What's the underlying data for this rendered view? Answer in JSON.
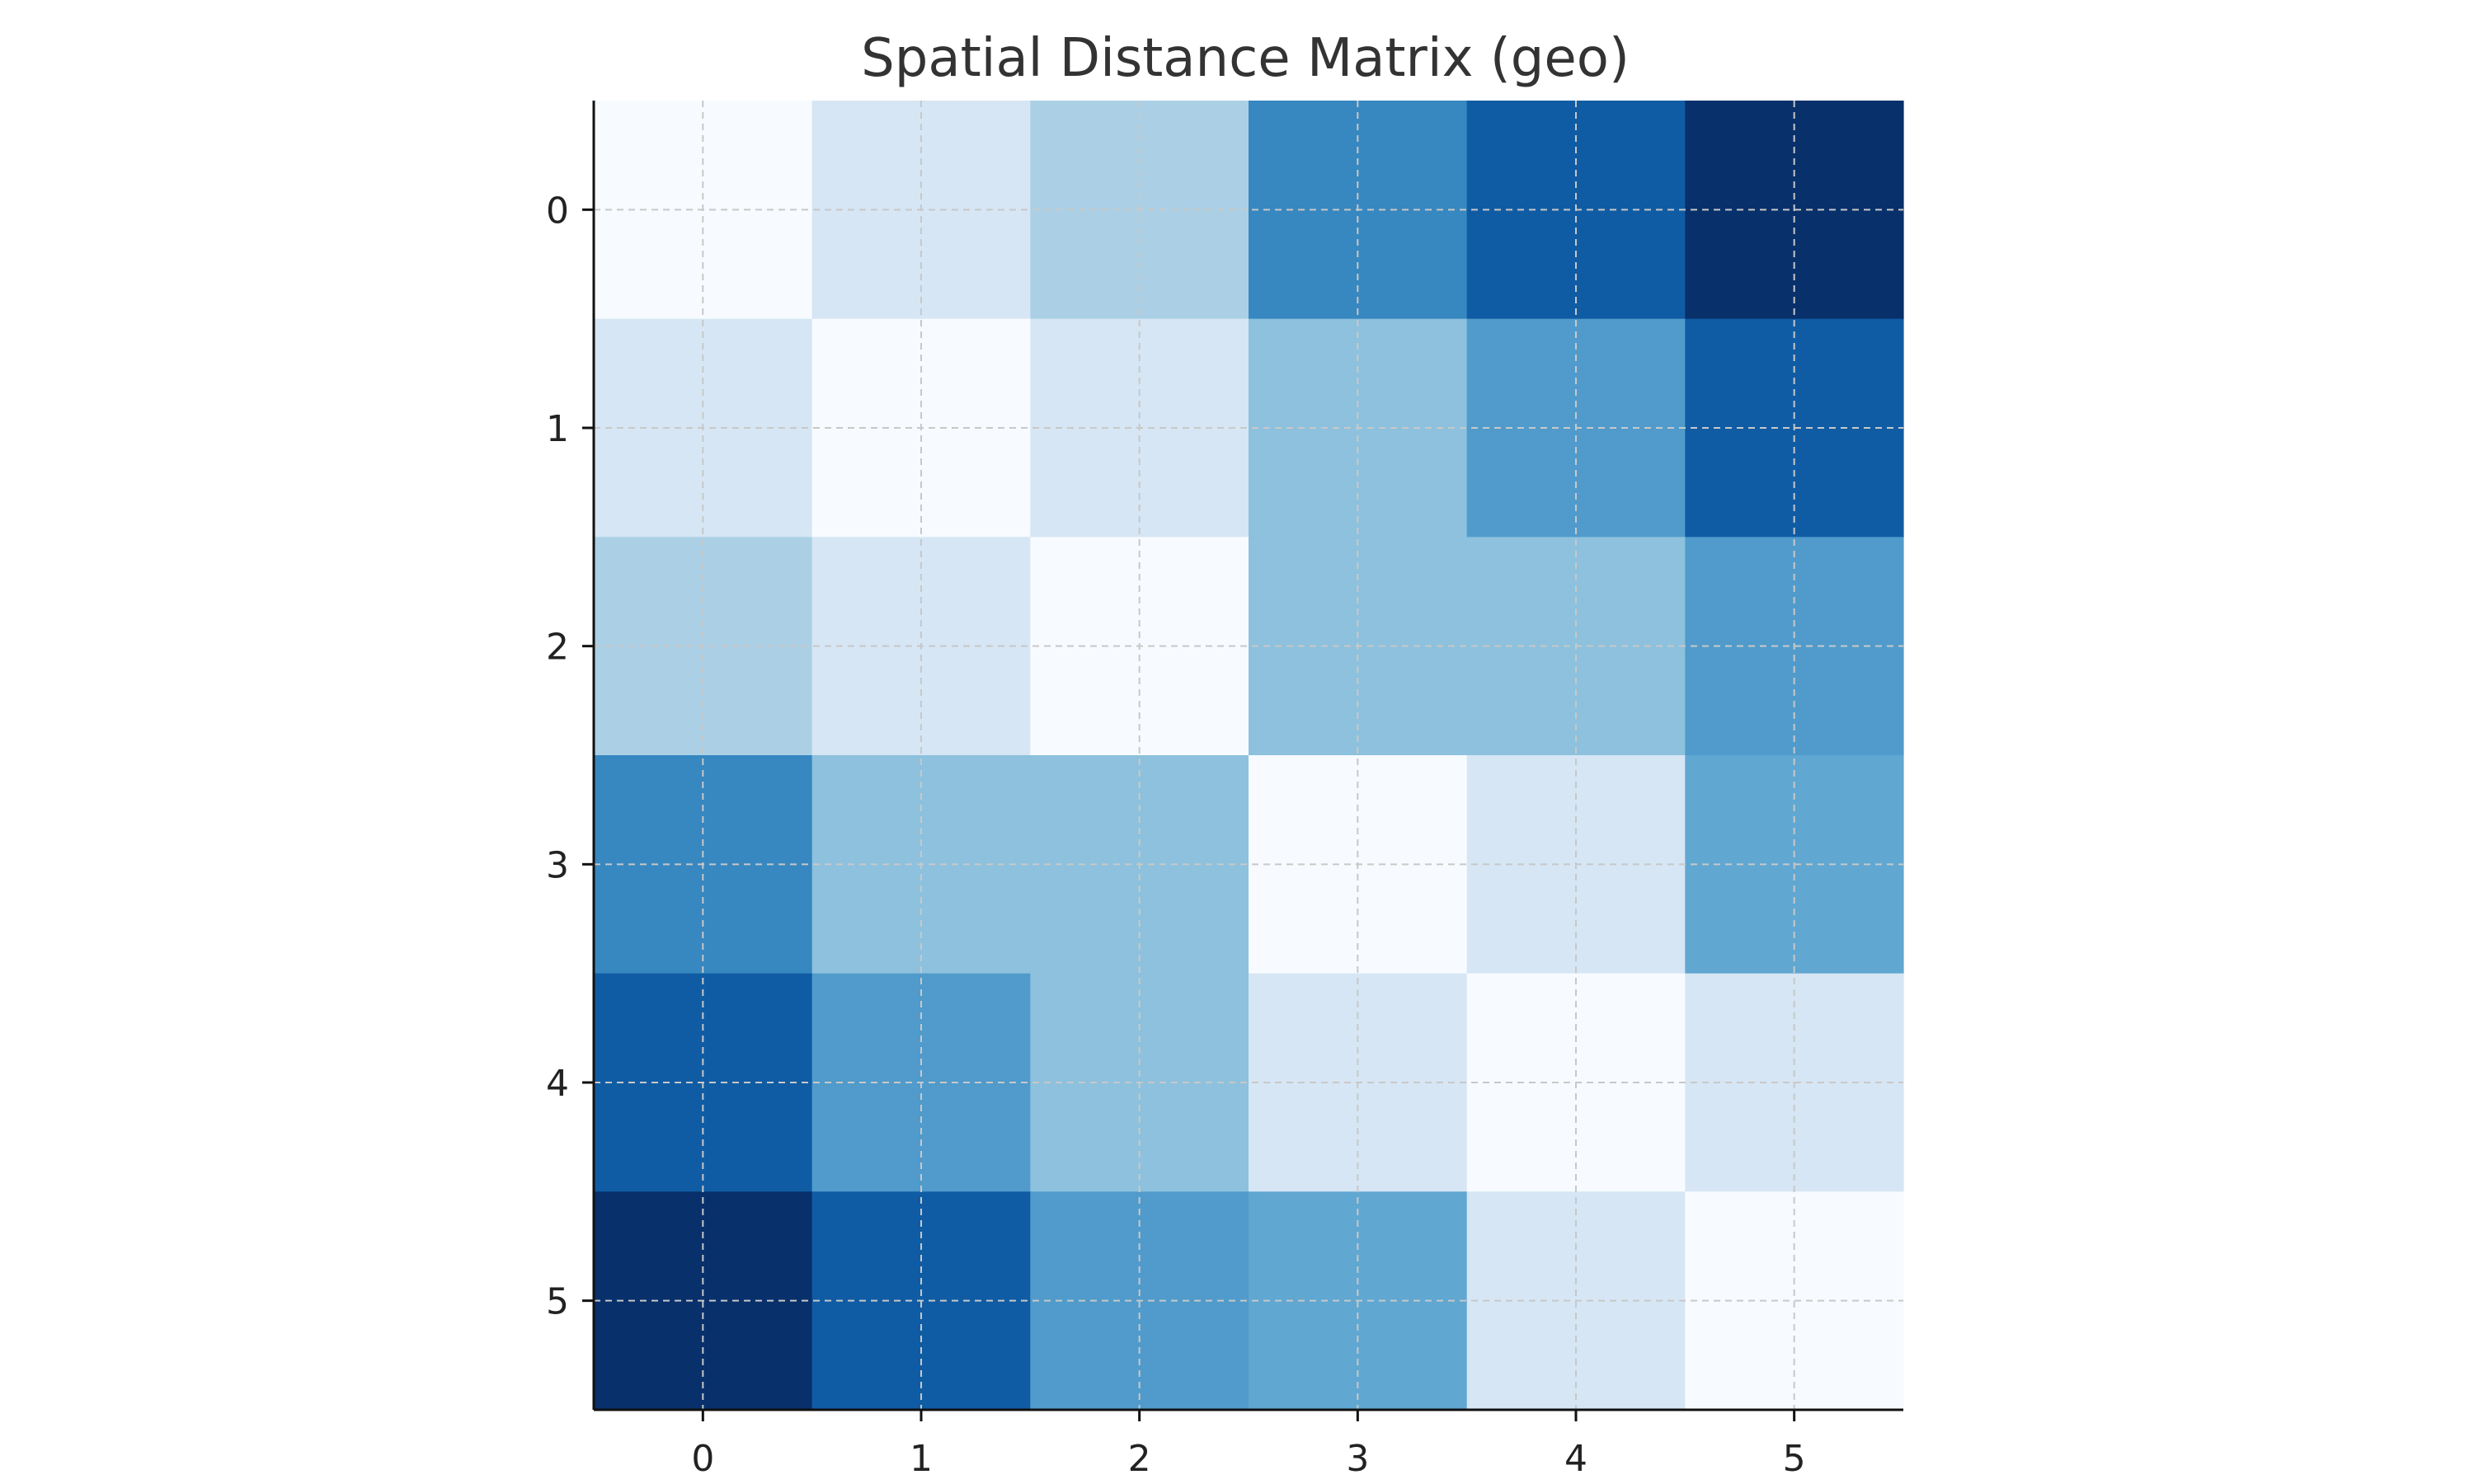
{
  "chart_data": {
    "type": "heatmap",
    "title": "Spatial Distance Matrix (geo)",
    "xlabel": "",
    "ylabel": "",
    "x_ticks": [
      "0",
      "1",
      "2",
      "3",
      "4",
      "5"
    ],
    "y_ticks": [
      "0",
      "1",
      "2",
      "3",
      "4",
      "5"
    ],
    "matrix": [
      [
        0,
        1,
        2,
        4,
        5,
        6
      ],
      [
        1,
        0,
        1,
        2.5,
        3.5,
        5
      ],
      [
        2,
        1,
        0,
        2.5,
        2.5,
        3.5
      ],
      [
        4,
        2.5,
        2.5,
        0,
        1,
        3.2
      ],
      [
        5,
        3.5,
        2.5,
        1,
        0,
        1
      ],
      [
        6,
        5,
        3.5,
        3.2,
        1,
        0
      ]
    ],
    "colormap": "Blues",
    "vmin": 0,
    "vmax": 6,
    "grid": true,
    "colors": {
      "low": "#f7fbff",
      "high": "#08306b"
    }
  }
}
